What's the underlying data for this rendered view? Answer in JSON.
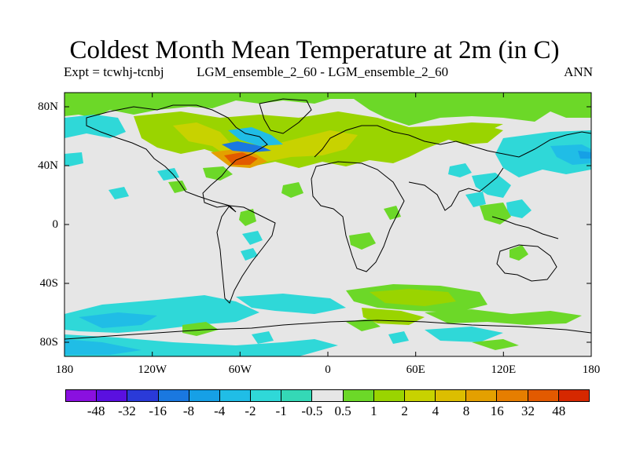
{
  "title": "Coldest Month Mean Temperature at 2m (in C)",
  "expt_label": "Expt = tcwhj-tcnbj",
  "case_label": "LGM_ensemble_2_60 - LGM_ensemble_2_60",
  "season_label": "ANN",
  "map": {
    "projection": "cylindrical equidistant",
    "lon_range": [
      -180,
      180
    ],
    "lat_range": [
      -90,
      90
    ],
    "lat_tick_labels": [
      "80N",
      "40N",
      "0",
      "40S",
      "80S"
    ],
    "lat_tick_values": [
      80,
      40,
      0,
      -40,
      -80
    ],
    "lon_tick_labels": [
      "180",
      "120W",
      "60W",
      "0",
      "60E",
      "120E",
      "180"
    ],
    "lon_tick_values": [
      -180,
      -120,
      -60,
      0,
      60,
      120,
      180
    ],
    "background_color": "#e6e6e6",
    "coastline_color": "#000000"
  },
  "colorbar": {
    "colors": [
      "#8a10e0",
      "#5a10e0",
      "#2a3ad8",
      "#1a78e0",
      "#16a0e6",
      "#20bde6",
      "#2fd8d8",
      "#34d8b6",
      "#e6e6e6",
      "#6cd828",
      "#9ad400",
      "#c8d200",
      "#dcbe00",
      "#e4a000",
      "#e67e00",
      "#e25a00",
      "#d62800"
    ],
    "labels": [
      "-48",
      "-32",
      "-16",
      "-8",
      "-4",
      "-2",
      "-1",
      "-0.5",
      "0.5",
      "1",
      "2",
      "4",
      "8",
      "16",
      "32",
      "48"
    ]
  }
}
